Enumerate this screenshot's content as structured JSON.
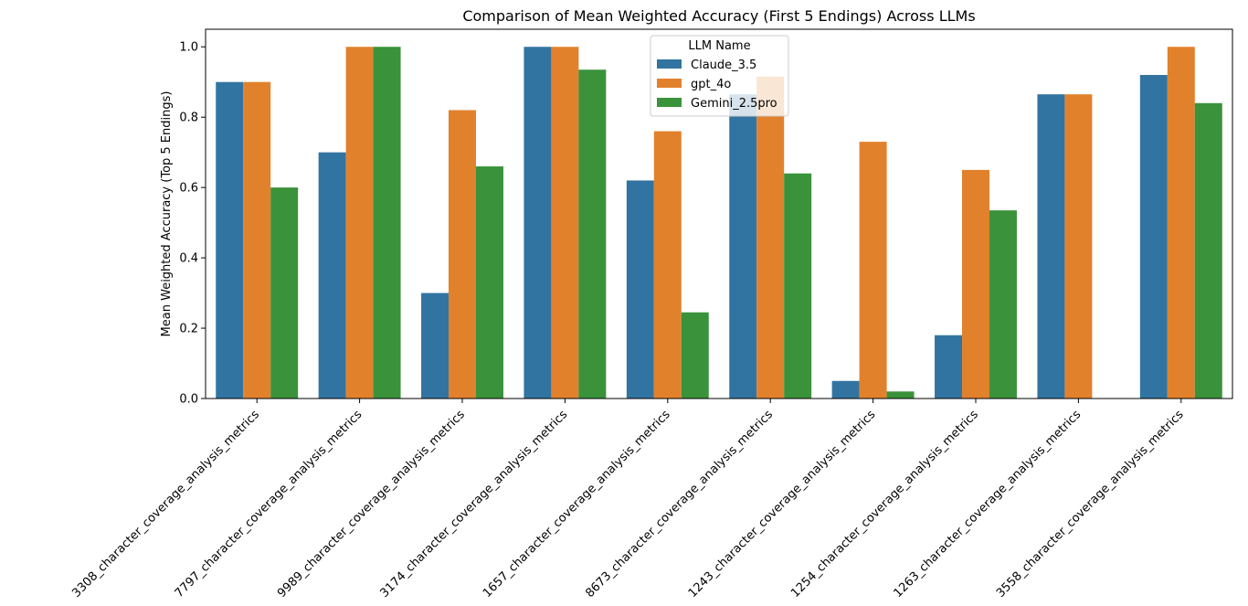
{
  "chart_data": {
    "type": "bar",
    "title": "Comparison of Mean Weighted Accuracy (First 5 Endings) Across LLMs",
    "xlabel": "",
    "ylabel": "Mean Weighted Accuracy (Top 5 Endings)",
    "ylim": [
      0,
      1.05
    ],
    "yticks": [
      "0.0",
      "0.2",
      "0.4",
      "0.6",
      "0.8",
      "1.0"
    ],
    "categories": [
      "3308_character_coverage_analysis_metrics",
      "7797_character_coverage_analysis_metrics",
      "9989_character_coverage_analysis_metrics",
      "3174_character_coverage_analysis_metrics",
      "1657_character_coverage_analysis_metrics",
      "8673_character_coverage_analysis_metrics",
      "1243_character_coverage_analysis_metrics",
      "1254_character_coverage_analysis_metrics",
      "1263_character_coverage_analysis_metrics",
      "3558_character_coverage_analysis_metrics"
    ],
    "series": [
      {
        "name": "Claude_3.5",
        "color": "#3274a1",
        "values": [
          0.9,
          0.7,
          0.3,
          1.0,
          0.62,
          0.865,
          0.05,
          0.18,
          0.865,
          0.92
        ]
      },
      {
        "name": "gpt_4o",
        "color": "#e1812c",
        "values": [
          0.9,
          1.0,
          0.82,
          1.0,
          0.76,
          0.915,
          0.73,
          0.65,
          0.865,
          1.0
        ]
      },
      {
        "name": "Gemini_2.5pro",
        "color": "#3a923a",
        "values": [
          0.6,
          1.0,
          0.66,
          0.935,
          0.245,
          0.64,
          0.02,
          0.535,
          null,
          0.84
        ]
      }
    ],
    "legend": {
      "title": "LLM Name",
      "placement": "top-center"
    },
    "grid": false
  }
}
